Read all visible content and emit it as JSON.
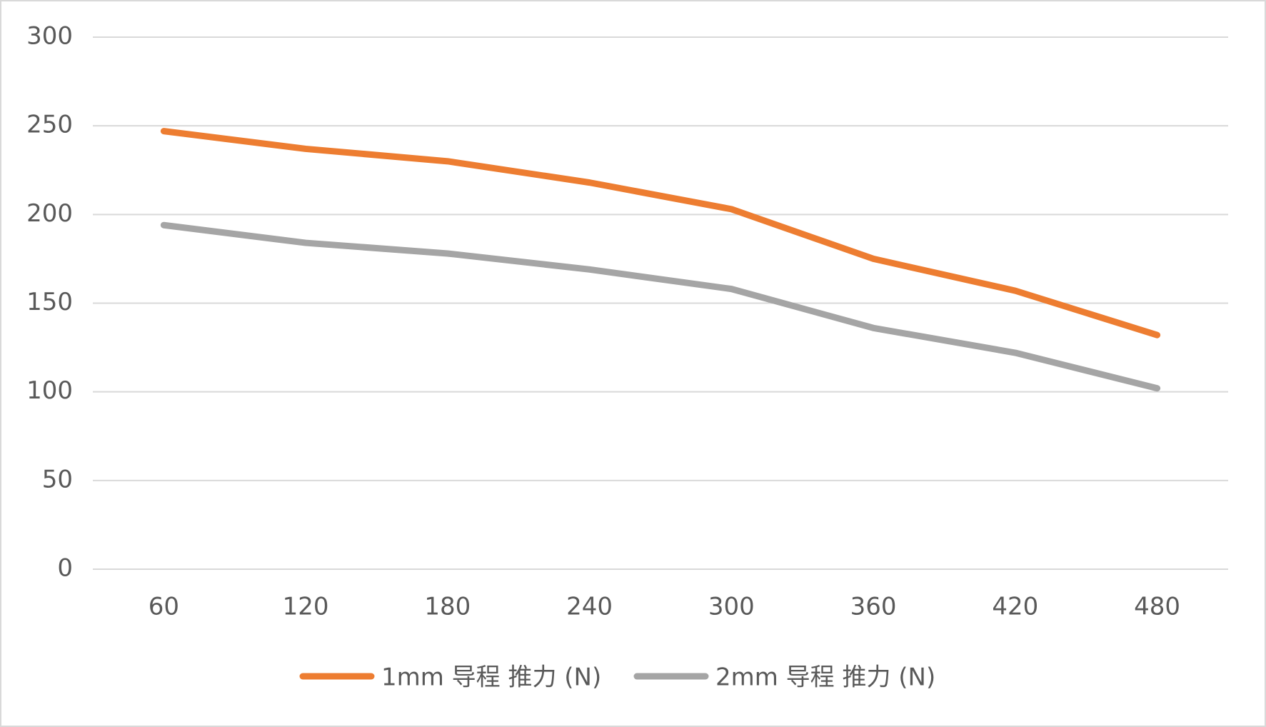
{
  "chart_data": {
    "type": "line",
    "categories": [
      "60",
      "120",
      "180",
      "240",
      "300",
      "360",
      "420",
      "480"
    ],
    "series": [
      {
        "name": "1mm 导程 推力 (N)",
        "color": "#ed7d31",
        "values": [
          247,
          237,
          230,
          218,
          203,
          175,
          157,
          132
        ]
      },
      {
        "name": "2mm 导程 推力 (N)",
        "color": "#a5a5a5",
        "values": [
          194,
          184,
          178,
          169,
          158,
          136,
          122,
          102
        ]
      }
    ],
    "ylim": [
      0,
      300
    ],
    "yticks": [
      0,
      50,
      100,
      150,
      200,
      250,
      300
    ],
    "grid": true,
    "legend": "bottom"
  }
}
